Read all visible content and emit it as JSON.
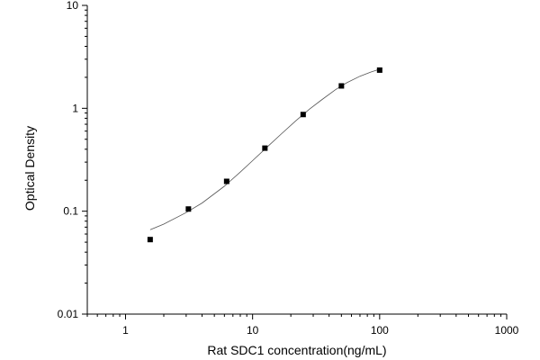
{
  "chart_data": {
    "type": "scatter",
    "title": "",
    "xlabel": "Rat SDC1 concentration(ng/mL)",
    "ylabel": "Optical Density",
    "x_scale": "log",
    "y_scale": "log",
    "xlim": [
      0.5,
      1000
    ],
    "ylim": [
      0.01,
      10
    ],
    "x_ticks": [
      1,
      10,
      100,
      1000
    ],
    "x_tick_labels": [
      "1",
      "10",
      "100",
      "1000"
    ],
    "y_ticks": [
      0.01,
      0.1,
      1,
      10
    ],
    "y_tick_labels": [
      "0.01",
      "0.1",
      "1",
      "10"
    ],
    "grid": false,
    "legend": "none",
    "series": [
      {
        "marker": "square",
        "x": [
          1.5625,
          3.125,
          6.25,
          12.5,
          25,
          50,
          100
        ],
        "y": [
          0.053,
          0.105,
          0.195,
          0.41,
          0.87,
          1.65,
          2.35
        ]
      }
    ],
    "fit_curve": {
      "style": "thin line",
      "x": [
        1.5625,
        2,
        3,
        4,
        6,
        8,
        10,
        13,
        17,
        22,
        28,
        35,
        45,
        55,
        70,
        85,
        100
      ],
      "y": [
        0.066,
        0.075,
        0.097,
        0.12,
        0.175,
        0.24,
        0.31,
        0.42,
        0.57,
        0.76,
        0.98,
        1.21,
        1.52,
        1.77,
        2.05,
        2.25,
        2.4
      ]
    },
    "colors": {
      "axis": "#000000",
      "marker": "#000000",
      "curve": "#555555"
    }
  }
}
